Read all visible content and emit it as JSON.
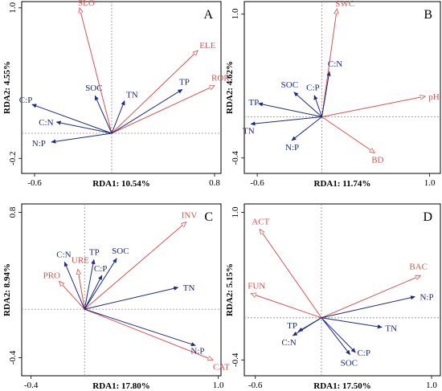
{
  "colors": {
    "environment": "#d9534f",
    "stoichiometry": "#1f2a7a",
    "grid": "#8a8a8a"
  },
  "chart_data": [
    {
      "type": "scatter",
      "panel": "A",
      "xlabel": "RDA1: 10.54%",
      "ylabel": "RDA2: 4.55%",
      "xlim": [
        -0.7,
        0.85
      ],
      "ylim": [
        -0.32,
        1.05
      ],
      "xticks": [
        -0.6,
        0.8
      ],
      "yticks": [
        -0.2,
        1.0
      ],
      "xtick_labels": [
        "-0.6",
        "0.8"
      ],
      "ytick_labels": [
        "-0.2",
        "1.0"
      ],
      "vectors": [
        {
          "name": "SLO",
          "x": -0.25,
          "y": 1.0,
          "group": "environment"
        },
        {
          "name": "ELE",
          "x": 0.67,
          "y": 0.66,
          "group": "environment"
        },
        {
          "name": "ROR",
          "x": 0.8,
          "y": 0.38,
          "group": "environment"
        },
        {
          "name": "SOC",
          "x": -0.13,
          "y": 0.3,
          "group": "stoichiometry"
        },
        {
          "name": "TN",
          "x": 0.1,
          "y": 0.26,
          "group": "stoichiometry"
        },
        {
          "name": "TP",
          "x": 0.55,
          "y": 0.35,
          "group": "stoichiometry"
        },
        {
          "name": "C:P",
          "x": -0.62,
          "y": 0.23,
          "group": "stoichiometry"
        },
        {
          "name": "C:N",
          "x": -0.43,
          "y": 0.09,
          "group": "stoichiometry"
        },
        {
          "name": "N:P",
          "x": -0.47,
          "y": -0.07,
          "group": "stoichiometry"
        }
      ]
    },
    {
      "type": "scatter",
      "panel": "B",
      "xlabel": "RDA1: 11.74%",
      "ylabel": "RDA2: 4.62%",
      "xlim": [
        -0.72,
        1.1
      ],
      "ylim": [
        -0.55,
        1.12
      ],
      "xticks": [
        -0.6,
        1.0
      ],
      "yticks": [
        -0.4,
        1.0
      ],
      "xtick_labels": [
        "-0.6",
        "1.0"
      ],
      "ytick_labels": [
        "-0.4",
        "1.0"
      ],
      "vectors": [
        {
          "name": "SWC",
          "x": 0.14,
          "y": 1.05,
          "group": "environment"
        },
        {
          "name": "pH",
          "x": 0.96,
          "y": 0.2,
          "group": "environment"
        },
        {
          "name": "BD",
          "x": 0.49,
          "y": -0.35,
          "group": "environment"
        },
        {
          "name": "C:N",
          "x": 0.07,
          "y": 0.44,
          "group": "stoichiometry"
        },
        {
          "name": "SOC",
          "x": -0.26,
          "y": 0.24,
          "group": "stoichiometry"
        },
        {
          "name": "C:P",
          "x": -0.07,
          "y": 0.21,
          "group": "stoichiometry"
        },
        {
          "name": "TP",
          "x": -0.59,
          "y": 0.13,
          "group": "stoichiometry"
        },
        {
          "name": "TN",
          "x": -0.66,
          "y": -0.07,
          "group": "stoichiometry"
        },
        {
          "name": "N:P",
          "x": -0.28,
          "y": -0.23,
          "group": "stoichiometry"
        }
      ]
    },
    {
      "type": "scatter",
      "panel": "C",
      "xlabel": "RDA1: 17.80%",
      "ylabel": "RDA2: 8.94%",
      "xlim": [
        -0.47,
        1.02
      ],
      "ylim": [
        -0.55,
        0.87
      ],
      "xticks": [
        -0.4,
        1.0
      ],
      "yticks": [
        -0.4,
        0.8
      ],
      "xtick_labels": [
        "-0.4",
        "1.0"
      ],
      "ytick_labels": [
        "-0.4",
        "0.8"
      ],
      "vectors": [
        {
          "name": "INV",
          "x": 0.76,
          "y": 0.72,
          "group": "environment"
        },
        {
          "name": "CAT",
          "x": 0.96,
          "y": -0.42,
          "group": "environment"
        },
        {
          "name": "URE",
          "x": -0.05,
          "y": 0.33,
          "group": "environment"
        },
        {
          "name": "PRO",
          "x": -0.19,
          "y": 0.23,
          "group": "environment"
        },
        {
          "name": "C:N",
          "x": -0.15,
          "y": 0.39,
          "group": "stoichiometry"
        },
        {
          "name": "TP",
          "x": 0.07,
          "y": 0.41,
          "group": "stoichiometry"
        },
        {
          "name": "SOC",
          "x": 0.24,
          "y": 0.42,
          "group": "stoichiometry"
        },
        {
          "name": "C:P",
          "x": 0.13,
          "y": 0.28,
          "group": "stoichiometry"
        },
        {
          "name": "TN",
          "x": 0.7,
          "y": 0.18,
          "group": "stoichiometry"
        },
        {
          "name": "N:P",
          "x": 0.83,
          "y": -0.3,
          "group": "stoichiometry"
        }
      ]
    },
    {
      "type": "scatter",
      "panel": "D",
      "xlabel": "RDA1: 17.50%",
      "ylabel": "RDA2: 5.15%",
      "xlim": [
        -0.7,
        1.08
      ],
      "ylim": [
        -0.55,
        1.08
      ],
      "xticks": [
        -0.6,
        1.0
      ],
      "yticks": [
        -0.4,
        1.0
      ],
      "xtick_labels": [
        "-0.6",
        "1.0"
      ],
      "ytick_labels": [
        "-0.4",
        "1.0"
      ],
      "vectors": [
        {
          "name": "ACT",
          "x": -0.56,
          "y": 0.84,
          "group": "environment"
        },
        {
          "name": "BAC",
          "x": 0.9,
          "y": 0.4,
          "group": "environment"
        },
        {
          "name": "FUN",
          "x": -0.64,
          "y": 0.23,
          "group": "environment"
        },
        {
          "name": "N:P",
          "x": 0.85,
          "y": 0.2,
          "group": "stoichiometry"
        },
        {
          "name": "TN",
          "x": 0.55,
          "y": -0.09,
          "group": "stoichiometry"
        },
        {
          "name": "TP",
          "x": -0.21,
          "y": -0.13,
          "group": "stoichiometry"
        },
        {
          "name": "C:N",
          "x": -0.26,
          "y": -0.17,
          "group": "stoichiometry"
        },
        {
          "name": "C:P",
          "x": 0.31,
          "y": -0.33,
          "group": "stoichiometry"
        },
        {
          "name": "SOC",
          "x": 0.26,
          "y": -0.35,
          "group": "stoichiometry"
        }
      ]
    }
  ]
}
